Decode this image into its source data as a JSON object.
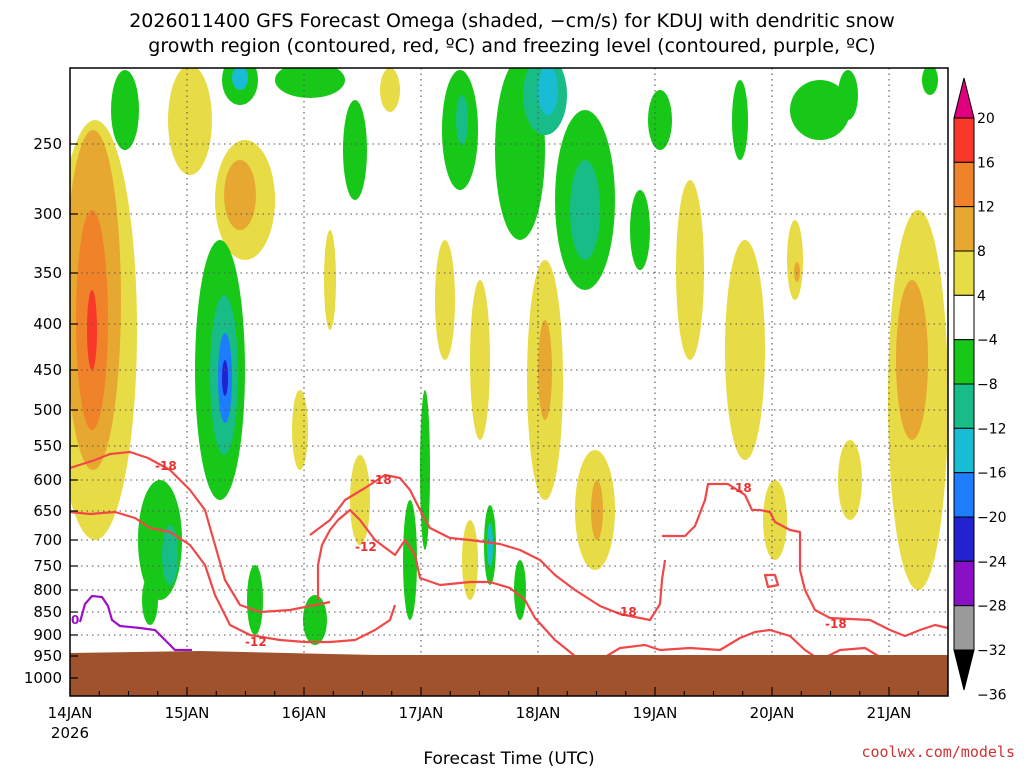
{
  "chart_data": {
    "type": "heatmap",
    "title_line1": "2026011400 GFS Forecast Omega (shaded, −cm/s) for KDUJ with dendritic snow",
    "title_line2": "growth region (contoured, red, ºC) and freezing level (contoured, purple, ºC)",
    "xlabel": "Forecast Time (UTC)",
    "x_ticks": [
      "14JAN",
      "15JAN",
      "16JAN",
      "17JAN",
      "18JAN",
      "19JAN",
      "20JAN",
      "21JAN"
    ],
    "x_first_year": "2026",
    "y_ticks": [
      "250",
      "300",
      "350",
      "400",
      "450",
      "500",
      "550",
      "600",
      "650",
      "700",
      "750",
      "800",
      "850",
      "900",
      "950",
      "1000"
    ],
    "y_axis": "pressure (hPa), reversed",
    "colorbar_ticks": [
      "20",
      "16",
      "12",
      "8",
      "4",
      "−4",
      "−8",
      "−12",
      "−16",
      "−20",
      "−24",
      "−28",
      "−32",
      "−36"
    ],
    "colorbar_colors": [
      "#e0007f",
      "#f83828",
      "#f0822a",
      "#e6a830",
      "#e8dc46",
      "#ffffff",
      "#18c818",
      "#18bc86",
      "#18bcd4",
      "#1e7cff",
      "#2222d0",
      "#8a10c8",
      "#9a9a9a",
      "#000000"
    ],
    "contour_labels": [
      "-18",
      "-18",
      "-12",
      "-12",
      "-18",
      "-18",
      "-18",
      "0"
    ],
    "ground_color": "#a0522d",
    "credit": "coolwx.com/models"
  }
}
